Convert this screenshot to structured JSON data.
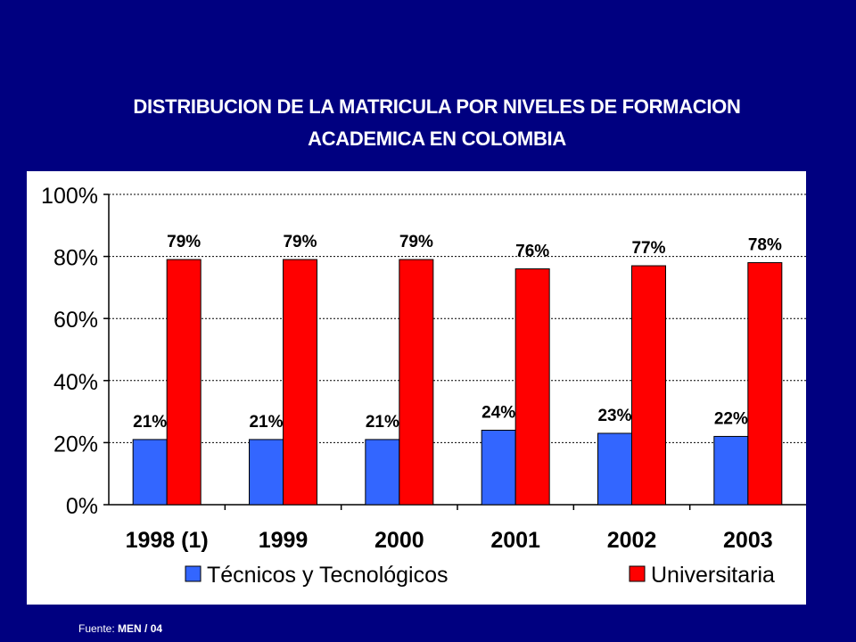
{
  "title_lines": [
    "DISTRIBUCION DE LA MATRICULA POR NIVELES DE FORMACION",
    "ACADEMICA EN COLOMBIA"
  ],
  "source": {
    "label": "Fuente:",
    "value": "MEN / 04"
  },
  "colors": {
    "background": "#000080",
    "series1": "#3366ff",
    "series2": "#ff0000"
  },
  "chart_data": {
    "type": "bar",
    "categories": [
      "1998 (1)",
      "1999",
      "2000",
      "2001",
      "2002",
      "2003"
    ],
    "series": [
      {
        "name": "Técnicos y Tecnológicos",
        "values": [
          21,
          21,
          21,
          24,
          23,
          22
        ],
        "labels": [
          "21%",
          "21%",
          "21%",
          "24%",
          "23%",
          "22%"
        ]
      },
      {
        "name": "Universitaria",
        "values": [
          79,
          79,
          79,
          76,
          77,
          78
        ],
        "labels": [
          "79%",
          "79%",
          "79%",
          "76%",
          "77%",
          "78%"
        ]
      }
    ],
    "yticks": [
      "0%",
      "20%",
      "40%",
      "60%",
      "80%",
      "100%"
    ],
    "ylim": [
      0,
      100
    ],
    "grid": true,
    "legend_position": "bottom"
  }
}
